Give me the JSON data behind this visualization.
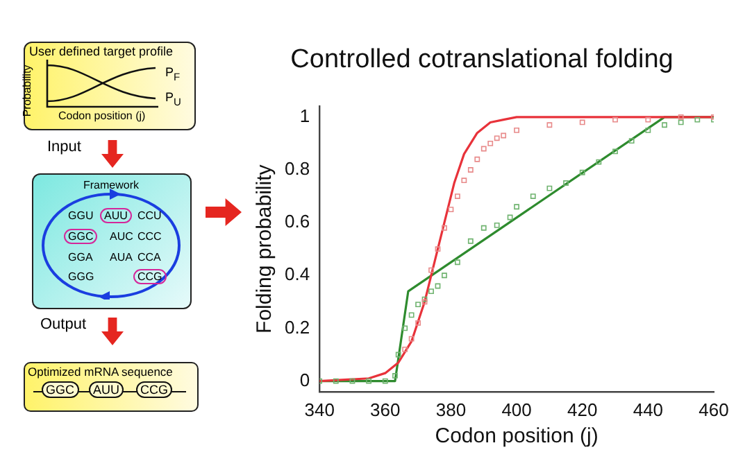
{
  "chart_data": {
    "type": "line",
    "title": "Controlled cotranslational folding",
    "xlabel": "Codon position (j)",
    "ylabel": "Folding probability",
    "xlim": [
      340,
      460
    ],
    "xticks": [
      340,
      360,
      380,
      400,
      420,
      440,
      460
    ],
    "ylim": [
      -0.04,
      1.04
    ],
    "yticks": [
      0,
      0.2,
      0.4,
      0.6,
      0.8,
      1
    ],
    "grid": false,
    "legend": false,
    "series": [
      {
        "type": "scatter",
        "marker": "square",
        "color": "#e88a8a",
        "x": [
          366,
          368,
          370,
          372,
          374,
          376,
          378,
          380,
          382,
          384,
          386,
          388,
          390,
          392,
          394,
          396,
          400,
          410,
          420,
          430,
          440,
          450,
          460
        ],
        "values": [
          0.12,
          0.16,
          0.22,
          0.3,
          0.42,
          0.5,
          0.58,
          0.65,
          0.7,
          0.76,
          0.8,
          0.84,
          0.88,
          0.9,
          0.92,
          0.93,
          0.95,
          0.97,
          0.98,
          0.99,
          0.99,
          1.0,
          1.0
        ]
      },
      {
        "type": "scatter",
        "marker": "square",
        "color": "#6fb36f",
        "x": [
          340,
          345,
          350,
          355,
          360,
          363,
          364,
          366,
          368,
          370,
          372,
          374,
          376,
          378,
          382,
          386,
          390,
          394,
          398,
          400,
          405,
          410,
          415,
          420,
          425,
          430,
          435,
          440,
          445,
          450,
          455,
          460
        ],
        "values": [
          0,
          0,
          0,
          0,
          0,
          0.02,
          0.1,
          0.2,
          0.25,
          0.29,
          0.31,
          0.34,
          0.36,
          0.4,
          0.45,
          0.53,
          0.58,
          0.59,
          0.62,
          0.66,
          0.7,
          0.73,
          0.75,
          0.79,
          0.83,
          0.87,
          0.91,
          0.95,
          0.97,
          0.98,
          0.99,
          0.99
        ]
      },
      {
        "marker": "none",
        "color": "#e8323a",
        "x": [
          340,
          355,
          360,
          364,
          368,
          372,
          375,
          378,
          381,
          384,
          388,
          392,
          396,
          400,
          460
        ],
        "values": [
          0,
          0.01,
          0.03,
          0.07,
          0.15,
          0.3,
          0.45,
          0.6,
          0.75,
          0.86,
          0.94,
          0.98,
          0.99,
          1.0,
          1.0
        ]
      },
      {
        "marker": "none",
        "color": "#2e8b2e",
        "x": [
          340,
          363,
          367,
          445,
          460
        ],
        "values": [
          0,
          0,
          0.34,
          1.0,
          1.0
        ]
      }
    ],
    "annotations": [
      "User defined target profile",
      "Probability",
      "Codon position (j)",
      "P$_{F}$",
      "P$_{U}$",
      "Input",
      "Framework",
      "GGU",
      "AUU",
      "CCU",
      "GGC",
      "AUC",
      "CCC",
      "GGA",
      "AUA",
      "CCA",
      "GGG",
      "CCG",
      "Output",
      "Optimized mRNA sequence",
      "GGC",
      "AUU",
      "CCG"
    ]
  }
}
